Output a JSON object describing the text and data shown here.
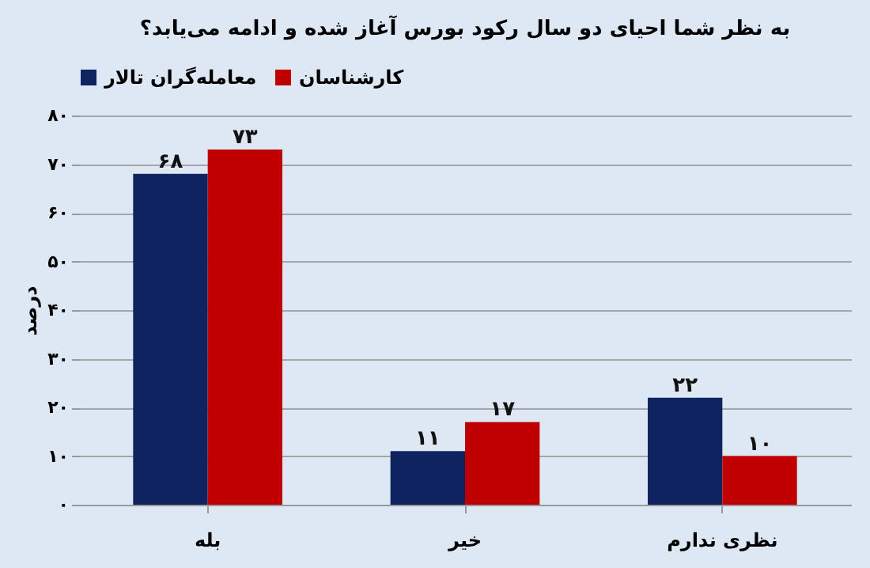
{
  "chart_data": {
    "type": "bar",
    "title": "به نظر شما احیای دو سال رکود بورس آغاز شده و ادامه می‌یابد؟",
    "ylabel": "درصد",
    "categories": [
      "بله",
      "خیر",
      "نظری ندارم"
    ],
    "series": [
      {
        "name": "معامله‌گران تالار",
        "color": "#0f2360",
        "values": [
          68,
          11,
          22
        ],
        "value_labels": [
          "۶۸",
          "۱۱",
          "۲۲"
        ]
      },
      {
        "name": "کارشناسان",
        "color": "#c00000",
        "values": [
          73,
          17,
          10
        ],
        "value_labels": [
          "۷۳",
          "۱۷",
          "۱۰"
        ]
      }
    ],
    "ylim": [
      0,
      80
    ],
    "yticks": [
      {
        "value": 0,
        "label": "۰"
      },
      {
        "value": 10,
        "label": "۱۰"
      },
      {
        "value": 20,
        "label": "۲۰"
      },
      {
        "value": 30,
        "label": "۳۰"
      },
      {
        "value": 40,
        "label": "۴۰"
      },
      {
        "value": 50,
        "label": "۵۰"
      },
      {
        "value": 60,
        "label": "۶۰"
      },
      {
        "value": 70,
        "label": "۷۰"
      },
      {
        "value": 80,
        "label": "۸۰"
      }
    ],
    "grid": "y",
    "legend": "top"
  }
}
